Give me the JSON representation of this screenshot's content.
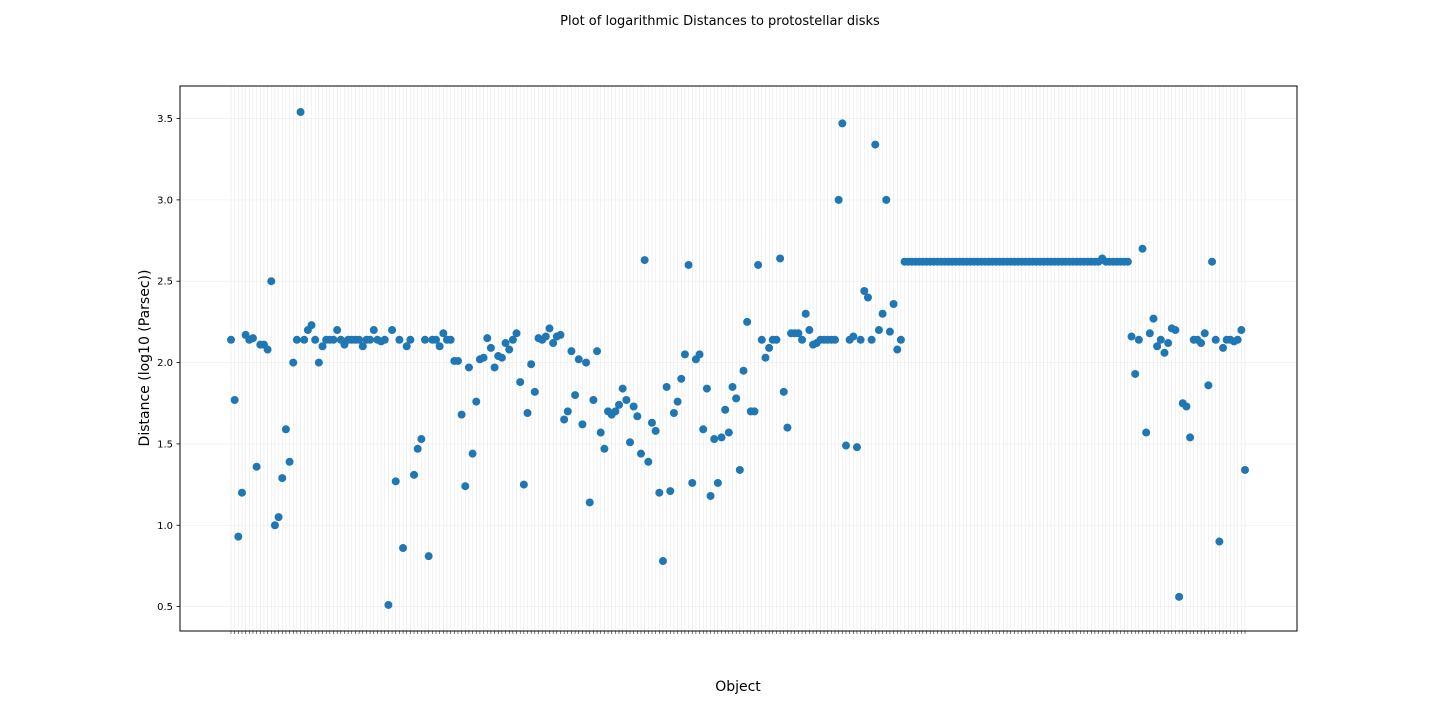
{
  "chart_data": {
    "type": "scatter",
    "title": "Plot of logarithmic Distances to protostellar disks",
    "xlabel": "Object",
    "ylabel": "Distance (log10 (Parsec))",
    "ylim": [
      0.35,
      3.7
    ],
    "yticks": [
      0.5,
      1.0,
      1.5,
      2.0,
      2.5,
      3.0,
      3.5
    ],
    "ytick_labels": [
      "0.5",
      "1.0",
      "1.5",
      "2.0",
      "2.5",
      "3.0",
      "3.5"
    ],
    "xtick_labels_legible": false,
    "grid": true,
    "marker_color": "#1f77b4",
    "series": [
      {
        "values": [
          2.14,
          1.77,
          0.93,
          1.2,
          2.17,
          2.14,
          2.15,
          1.36,
          2.11,
          2.11,
          2.08,
          2.5,
          1.0,
          1.05,
          1.29,
          1.59,
          1.39,
          2.0,
          2.14,
          3.54,
          2.14,
          2.2,
          2.23,
          2.14,
          2.0,
          2.1,
          2.14,
          2.14,
          2.14,
          2.2,
          2.14,
          2.11,
          2.14,
          2.14,
          2.14,
          2.14,
          2.1,
          2.14,
          2.14,
          2.2,
          2.14,
          2.13,
          2.14,
          0.51,
          2.2,
          1.27,
          2.14,
          0.86,
          2.1,
          2.14,
          1.31,
          1.47,
          1.53,
          2.14,
          0.81,
          2.14,
          2.14,
          2.1,
          2.18,
          2.14,
          2.14,
          2.01,
          2.01,
          1.68,
          1.24,
          1.97,
          1.44,
          1.76,
          2.02,
          2.03,
          2.15,
          2.09,
          1.97,
          2.04,
          2.03,
          2.12,
          2.08,
          2.14,
          2.18,
          1.88,
          1.25,
          1.69,
          1.99,
          1.82,
          2.15,
          2.14,
          2.16,
          2.21,
          2.12,
          2.16,
          2.17,
          1.65,
          1.7,
          2.07,
          1.8,
          2.02,
          1.62,
          2.0,
          1.14,
          1.77,
          2.07,
          1.57,
          1.47,
          1.7,
          1.68,
          1.7,
          1.74,
          1.84,
          1.77,
          1.51,
          1.73,
          1.67,
          1.44,
          2.63,
          1.39,
          1.63,
          1.58,
          1.2,
          0.78,
          1.85,
          1.21,
          1.69,
          1.76,
          1.9,
          2.05,
          2.6,
          1.26,
          2.02,
          2.05,
          1.59,
          1.84,
          1.18,
          1.53,
          1.26,
          1.54,
          1.71,
          1.57,
          1.85,
          1.78,
          1.34,
          1.95,
          2.25,
          1.7,
          1.7,
          2.6,
          2.14,
          2.03,
          2.09,
          2.14,
          2.14,
          2.64,
          1.82,
          1.6,
          2.18,
          2.18,
          2.18,
          2.14,
          2.3,
          2.2,
          2.11,
          2.12,
          2.14,
          2.14,
          2.14,
          2.14,
          2.14,
          3.0,
          3.47,
          1.49,
          2.14,
          2.16,
          1.48,
          2.14,
          2.44,
          2.4,
          2.14,
          3.34,
          2.2,
          2.3,
          3.0,
          2.19,
          2.36,
          2.08,
          2.14,
          2.62,
          2.62,
          2.62,
          2.62,
          2.62,
          2.62,
          2.62,
          2.62,
          2.62,
          2.62,
          2.62,
          2.62,
          2.62,
          2.62,
          2.62,
          2.62,
          2.62,
          2.62,
          2.62,
          2.62,
          2.62,
          2.62,
          2.62,
          2.62,
          2.62,
          2.62,
          2.62,
          2.62,
          2.62,
          2.62,
          2.62,
          2.62,
          2.62,
          2.62,
          2.62,
          2.62,
          2.62,
          2.62,
          2.62,
          2.62,
          2.62,
          2.62,
          2.62,
          2.62,
          2.62,
          2.62,
          2.62,
          2.62,
          2.62,
          2.62,
          2.62,
          2.62,
          2.62,
          2.62,
          2.64,
          2.62,
          2.62,
          2.62,
          2.62,
          2.62,
          2.62,
          2.62,
          2.16,
          1.93,
          2.14,
          2.7,
          1.57,
          2.18,
          2.27,
          2.1,
          2.14,
          2.06,
          2.12,
          2.21,
          2.2,
          0.56,
          1.75,
          1.73,
          1.54,
          2.14,
          2.14,
          2.12,
          2.18,
          1.86,
          2.62,
          2.14,
          0.9,
          2.09,
          2.14,
          2.14,
          2.13,
          2.14,
          2.2,
          1.34
        ]
      }
    ]
  }
}
